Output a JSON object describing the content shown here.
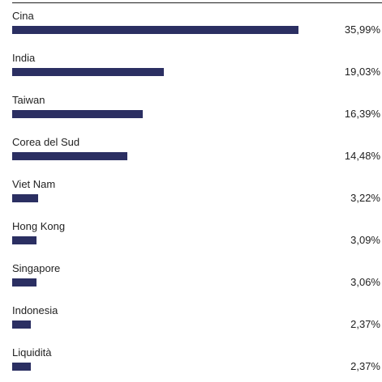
{
  "chart_data": {
    "type": "bar",
    "orientation": "horizontal",
    "categories": [
      "Cina",
      "India",
      "Taiwan",
      "Corea del Sud",
      "Viet Nam",
      "Hong Kong",
      "Singapore",
      "Indonesia",
      "Liquidità"
    ],
    "values": [
      35.99,
      19.03,
      16.39,
      14.48,
      3.22,
      3.09,
      3.06,
      2.37,
      2.37
    ],
    "value_labels": [
      "35,99%",
      "19,03%",
      "16,39%",
      "14,48%",
      "3,22%",
      "3,09%",
      "3,06%",
      "2,37%",
      "2,37%"
    ],
    "xlim": [
      0,
      35.99
    ],
    "bar_color": "#2b2f62",
    "grid": false,
    "legend": "none"
  }
}
